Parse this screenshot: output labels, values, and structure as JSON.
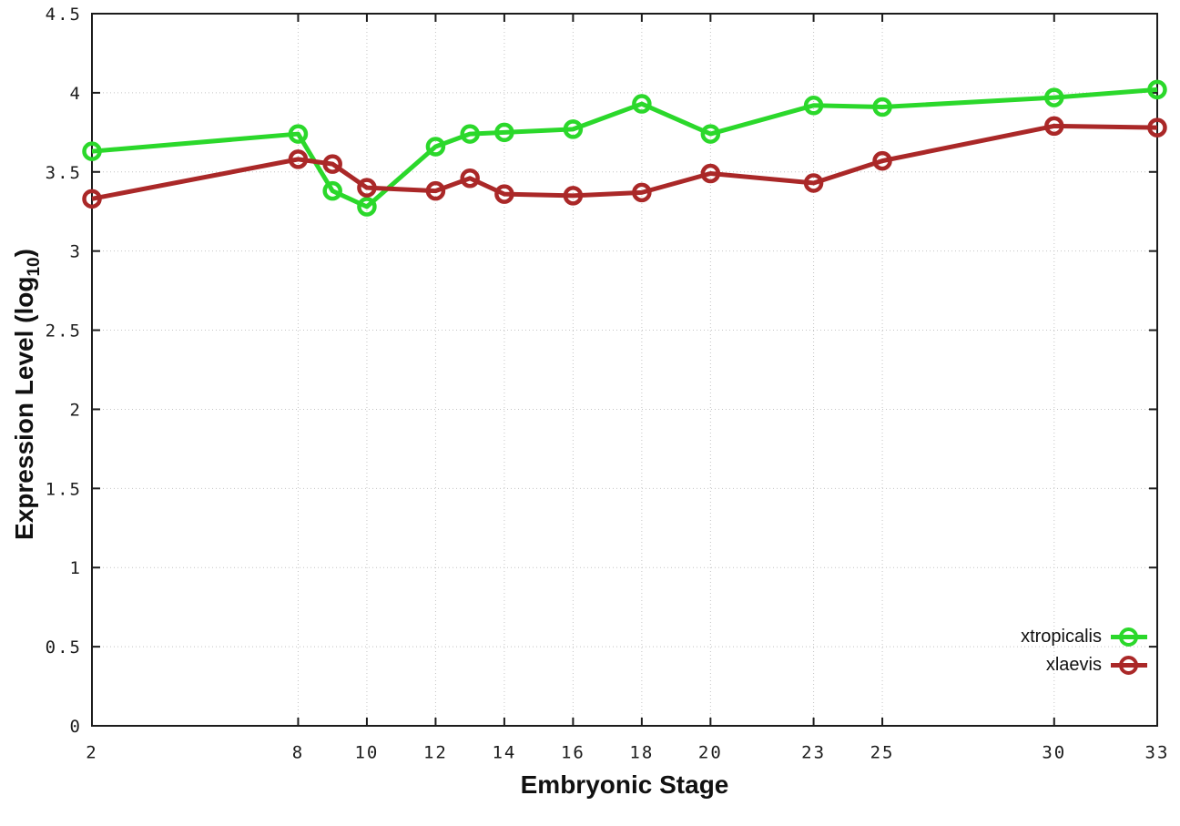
{
  "figure": {
    "background": "#ffffff",
    "xlabel": "Embryonic Stage",
    "ylabel_pre": "Expression Level (log",
    "ylabel_sub": "10",
    "ylabel_post": ")",
    "border_color": "#1c1c1c",
    "grid_color": "#c4c4c4",
    "tick_label_color": "#1c1c1c"
  },
  "chart_data": {
    "type": "line",
    "title": "",
    "xlabel": "Embryonic Stage",
    "ylabel": "Expression Level (log10)",
    "xlim": [
      2,
      33
    ],
    "ylim": [
      0,
      4.5
    ],
    "grid": true,
    "legend_position": "bottom-right",
    "xticks": [
      2,
      8,
      10,
      12,
      14,
      16,
      18,
      20,
      23,
      25,
      30,
      33
    ],
    "yticks": [
      0,
      0.5,
      1,
      1.5,
      2,
      2.5,
      3,
      3.5,
      4,
      4.5
    ],
    "x": [
      2,
      8,
      9,
      10,
      12,
      13,
      14,
      16,
      18,
      20,
      23,
      25,
      30,
      33
    ],
    "series": [
      {
        "name": "xtropicalis",
        "color": "#2bd82b",
        "marker": "open-circle",
        "values": [
          3.63,
          3.74,
          3.38,
          3.28,
          3.66,
          3.74,
          3.75,
          3.77,
          3.93,
          3.74,
          3.92,
          3.91,
          3.97,
          4.02
        ]
      },
      {
        "name": "xlaevis",
        "color": "#aa2828",
        "marker": "open-circle",
        "values": [
          3.33,
          3.58,
          3.55,
          3.4,
          3.38,
          3.46,
          3.36,
          3.35,
          3.37,
          3.49,
          3.43,
          3.57,
          3.79,
          3.78
        ]
      }
    ]
  }
}
